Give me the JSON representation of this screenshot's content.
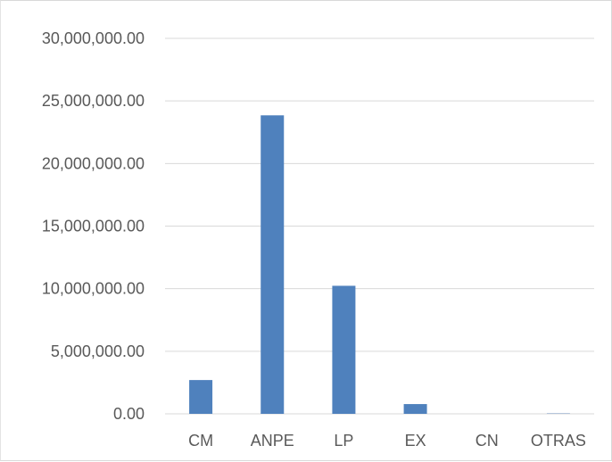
{
  "chart_data": {
    "type": "bar",
    "title": "",
    "xlabel": "",
    "ylabel": "",
    "categories": [
      "CM",
      "ANPE",
      "LP",
      "EX",
      "CN",
      "OTRAS"
    ],
    "values": [
      2700000,
      23850000,
      10230000,
      780000,
      0,
      60000
    ],
    "ylim": [
      0,
      30000000
    ],
    "ytick_values": [
      0,
      5000000,
      10000000,
      15000000,
      20000000,
      25000000,
      30000000
    ],
    "ytick_labels": [
      "0.00",
      "5,000,000.00",
      "10,000,000.00",
      "15,000,000.00",
      "20,000,000.00",
      "25,000,000.00",
      "30,000,000.00"
    ],
    "grid": true,
    "legend": "none",
    "bar_color": "#4f81bd",
    "grid_color": "#d9d9d9",
    "label_color": "#595959"
  }
}
